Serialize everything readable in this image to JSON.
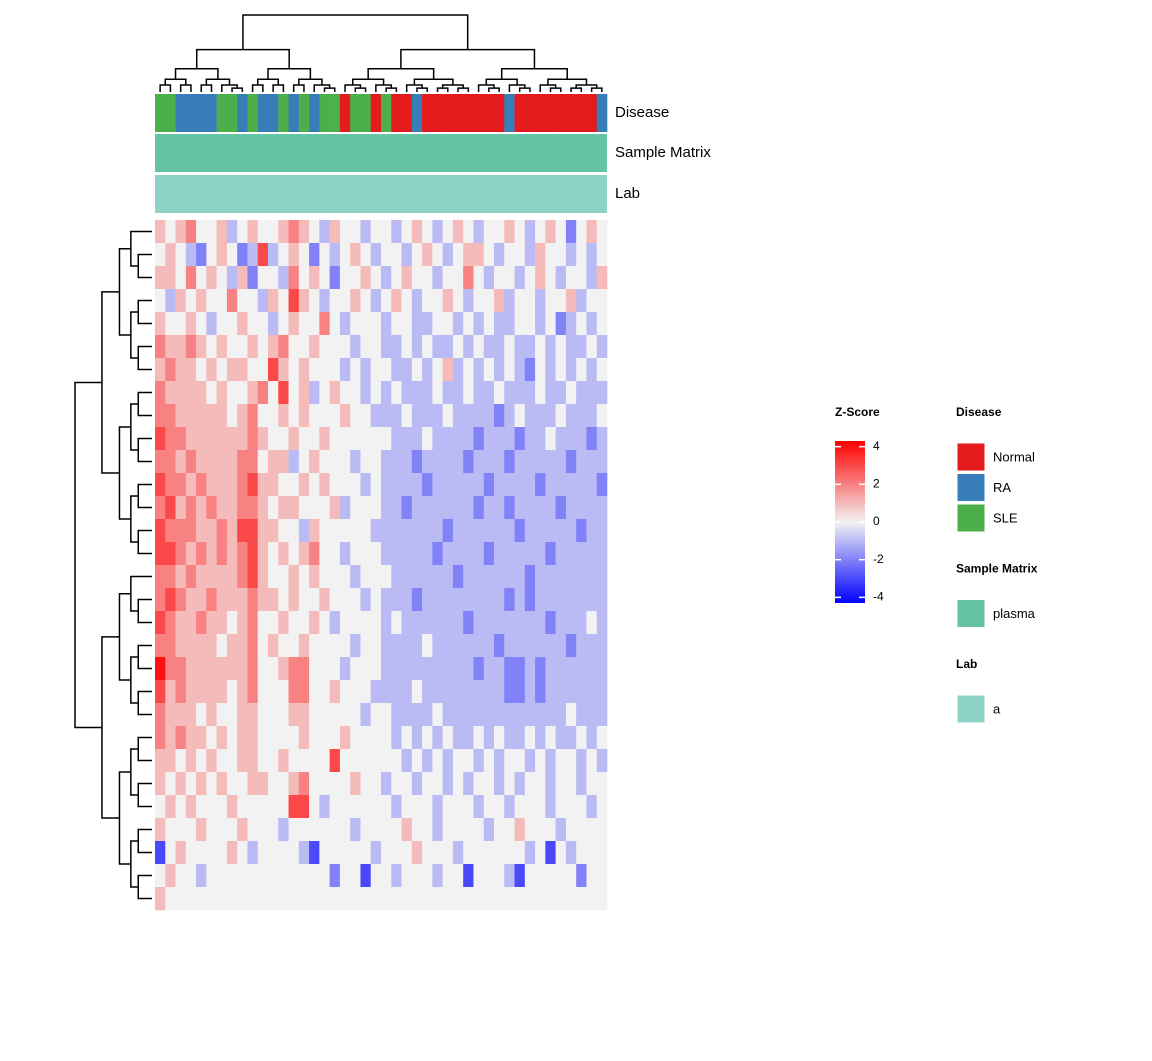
{
  "chart_data": {
    "type": "heatmap",
    "colorbar_title": "Z-Score",
    "zlim": [
      -4.3,
      4.3
    ],
    "zticks": [
      4,
      2,
      0,
      -2,
      -4
    ],
    "low_color": "#0000ff",
    "mid_color": "#f2f2f2",
    "high_color": "#ff0000",
    "annotations": [
      {
        "name": "Disease",
        "title": "Disease",
        "legend": [
          {
            "label": "Normal",
            "color": "#e41a1c"
          },
          {
            "label": "RA",
            "color": "#377eb8"
          },
          {
            "label": "SLE",
            "color": "#4daf4a"
          }
        ],
        "values": [
          "SLE",
          "SLE",
          "RA",
          "RA",
          "RA",
          "RA",
          "SLE",
          "SLE",
          "RA",
          "SLE",
          "RA",
          "RA",
          "SLE",
          "RA",
          "SLE",
          "RA",
          "SLE",
          "SLE",
          "Normal",
          "SLE",
          "SLE",
          "Normal",
          "SLE",
          "Normal",
          "Normal",
          "RA",
          "Normal",
          "Normal",
          "Normal",
          "Normal",
          "Normal",
          "Normal",
          "Normal",
          "Normal",
          "RA",
          "Normal",
          "Normal",
          "Normal",
          "Normal",
          "Normal",
          "Normal",
          "Normal",
          "Normal",
          "RA"
        ]
      },
      {
        "name": "Sample Matrix",
        "title": "Sample Matrix",
        "legend": [
          {
            "label": "plasma",
            "color": "#66c2a5"
          }
        ]
      },
      {
        "name": "Lab",
        "title": "Lab",
        "legend": [
          {
            "label": "a",
            "color": "#8dd3c7"
          }
        ]
      }
    ],
    "matrix": [
      [
        1,
        0,
        1,
        2,
        0,
        0,
        1,
        -1,
        0,
        1,
        0,
        0,
        1,
        2,
        1,
        0,
        -1,
        1,
        0,
        0,
        -1,
        0,
        0,
        -1,
        0,
        1,
        0,
        -1,
        0,
        1,
        0,
        -1,
        0,
        0,
        1,
        0,
        -1,
        0,
        1,
        0,
        -2,
        0,
        1,
        0
      ],
      [
        0,
        1,
        0,
        -1,
        -2,
        0,
        1,
        0,
        -2,
        -1,
        3,
        -1,
        0,
        1,
        0,
        -2,
        0,
        -1,
        0,
        1,
        0,
        -1,
        0,
        0,
        -1,
        0,
        1,
        0,
        -1,
        0,
        1,
        1,
        0,
        -1,
        0,
        0,
        -1,
        1,
        0,
        0,
        -1,
        0,
        -1,
        0
      ],
      [
        1,
        1,
        0,
        2,
        0,
        1,
        0,
        -1,
        1,
        -2,
        0,
        0,
        -1,
        2,
        0,
        1,
        0,
        -2,
        0,
        0,
        1,
        0,
        -1,
        0,
        1,
        0,
        0,
        -1,
        0,
        0,
        2,
        0,
        -1,
        0,
        0,
        -1,
        0,
        1,
        0,
        -1,
        0,
        0,
        -1,
        1
      ],
      [
        0,
        -1,
        1,
        0,
        1,
        0,
        0,
        2,
        0,
        0,
        -1,
        1,
        0,
        3,
        1,
        0,
        -1,
        0,
        0,
        1,
        0,
        -1,
        0,
        1,
        0,
        -1,
        0,
        0,
        1,
        0,
        -1,
        0,
        0,
        1,
        -1,
        0,
        0,
        -1,
        0,
        0,
        1,
        -1,
        0,
        0
      ],
      [
        1,
        0,
        0,
        1,
        0,
        -1,
        0,
        0,
        1,
        0,
        0,
        -1,
        0,
        1,
        0,
        0,
        2,
        0,
        -1,
        0,
        0,
        0,
        -1,
        0,
        0,
        -1,
        -1,
        0,
        0,
        -1,
        0,
        -1,
        0,
        -1,
        -1,
        0,
        0,
        -1,
        0,
        -2,
        -1,
        0,
        -1,
        0
      ],
      [
        2,
        1,
        1,
        2,
        1,
        0,
        1,
        0,
        0,
        1,
        0,
        1,
        2,
        0,
        0,
        1,
        0,
        0,
        0,
        -1,
        0,
        0,
        -1,
        -1,
        0,
        -1,
        0,
        -1,
        -1,
        0,
        -1,
        0,
        -1,
        -1,
        0,
        -1,
        -1,
        0,
        -1,
        0,
        -1,
        -1,
        0,
        -1
      ],
      [
        1,
        2,
        1,
        1,
        0,
        1,
        0,
        1,
        1,
        0,
        0,
        3,
        1,
        0,
        1,
        0,
        0,
        0,
        -1,
        0,
        -1,
        0,
        0,
        -1,
        -1,
        0,
        -1,
        0,
        1,
        -1,
        0,
        -1,
        0,
        -1,
        0,
        -1,
        -2,
        0,
        -1,
        0,
        -1,
        0,
        -1,
        0
      ],
      [
        2,
        1,
        1,
        1,
        1,
        0,
        1,
        0,
        0,
        1,
        2,
        0,
        3,
        0,
        1,
        -1,
        0,
        1,
        0,
        0,
        -1,
        0,
        -1,
        0,
        -1,
        -1,
        -1,
        0,
        -1,
        -1,
        0,
        -1,
        -1,
        0,
        -1,
        -1,
        -1,
        0,
        -1,
        -1,
        0,
        -1,
        -1,
        -1
      ],
      [
        2,
        2,
        1,
        1,
        1,
        1,
        1,
        0,
        1,
        2,
        0,
        0,
        1,
        0,
        1,
        0,
        0,
        0,
        1,
        0,
        0,
        -1,
        -1,
        -1,
        0,
        -1,
        -1,
        -1,
        0,
        -1,
        -1,
        -1,
        -1,
        -2,
        -1,
        0,
        -1,
        -1,
        -1,
        0,
        -1,
        -1,
        -1,
        0
      ],
      [
        3,
        2,
        2,
        1,
        1,
        1,
        1,
        1,
        1,
        2,
        1,
        0,
        0,
        1,
        0,
        0,
        1,
        0,
        0,
        0,
        0,
        0,
        0,
        -1,
        -1,
        -1,
        0,
        -1,
        -1,
        -1,
        -1,
        -2,
        -1,
        -1,
        -1,
        -2,
        -1,
        -1,
        0,
        -1,
        -1,
        -1,
        -2,
        -1
      ],
      [
        2,
        2,
        1,
        2,
        1,
        1,
        1,
        1,
        2,
        2,
        0,
        1,
        1,
        -1,
        0,
        1,
        0,
        0,
        0,
        -1,
        0,
        0,
        -1,
        -1,
        -1,
        -2,
        -1,
        -1,
        -1,
        -1,
        -2,
        -1,
        -1,
        -1,
        -2,
        -1,
        -1,
        -1,
        -1,
        -1,
        -2,
        -1,
        -1,
        -1
      ],
      [
        3,
        2,
        2,
        1,
        2,
        1,
        1,
        1,
        2,
        3,
        1,
        1,
        0,
        0,
        1,
        0,
        1,
        0,
        0,
        0,
        -1,
        0,
        -1,
        -1,
        -1,
        -1,
        -2,
        -1,
        -1,
        -1,
        -1,
        -1,
        -2,
        -1,
        -1,
        -1,
        -1,
        -2,
        -1,
        -1,
        -1,
        -1,
        -1,
        -2
      ],
      [
        2,
        3,
        1,
        2,
        1,
        2,
        1,
        1,
        2,
        2,
        1,
        0,
        1,
        1,
        0,
        0,
        0,
        1,
        -1,
        0,
        0,
        0,
        -1,
        -1,
        -2,
        -1,
        -1,
        -1,
        -1,
        -1,
        -1,
        -2,
        -1,
        -1,
        -2,
        -1,
        -1,
        -1,
        -1,
        -2,
        -1,
        -1,
        -1,
        -1
      ],
      [
        3,
        2,
        2,
        2,
        1,
        1,
        2,
        1,
        3,
        3,
        1,
        1,
        0,
        0,
        -1,
        1,
        0,
        0,
        0,
        0,
        0,
        -1,
        -1,
        -1,
        -1,
        -1,
        -1,
        -1,
        -2,
        -1,
        -1,
        -1,
        -1,
        -1,
        -1,
        -2,
        -1,
        -1,
        -1,
        -1,
        -1,
        -2,
        -1,
        -1
      ],
      [
        3,
        3,
        2,
        1,
        2,
        1,
        2,
        1,
        2,
        3,
        1,
        0,
        1,
        0,
        1,
        2,
        0,
        0,
        -1,
        0,
        0,
        0,
        -1,
        -1,
        -1,
        -1,
        -1,
        -2,
        -1,
        -1,
        -1,
        -1,
        -2,
        -1,
        -1,
        -1,
        -1,
        -1,
        -2,
        -1,
        -1,
        -1,
        -1,
        -1
      ],
      [
        2,
        2,
        1,
        2,
        1,
        1,
        1,
        1,
        2,
        3,
        1,
        0,
        0,
        1,
        0,
        1,
        0,
        0,
        0,
        -1,
        0,
        0,
        0,
        -1,
        -1,
        -1,
        -1,
        -1,
        -1,
        -2,
        -1,
        -1,
        -1,
        -1,
        -1,
        -1,
        -2,
        -1,
        -1,
        -1,
        -1,
        -1,
        -1,
        -1
      ],
      [
        2,
        3,
        2,
        1,
        1,
        2,
        1,
        1,
        1,
        2,
        1,
        1,
        0,
        1,
        0,
        0,
        1,
        0,
        0,
        0,
        -1,
        0,
        -1,
        -1,
        -1,
        -2,
        -1,
        -1,
        -1,
        -1,
        -1,
        -1,
        -1,
        -1,
        -2,
        -1,
        -2,
        -1,
        -1,
        -1,
        -1,
        -1,
        -1,
        -1
      ],
      [
        3,
        2,
        1,
        1,
        2,
        1,
        1,
        0,
        1,
        2,
        0,
        0,
        1,
        0,
        0,
        1,
        0,
        -1,
        0,
        0,
        0,
        0,
        -1,
        0,
        -1,
        -1,
        -1,
        -1,
        -1,
        -1,
        -2,
        -1,
        -1,
        -1,
        -1,
        -1,
        -1,
        -1,
        -2,
        -1,
        -1,
        -1,
        0,
        -1
      ],
      [
        2,
        2,
        1,
        1,
        1,
        1,
        0,
        1,
        1,
        2,
        0,
        1,
        0,
        0,
        1,
        0,
        0,
        0,
        0,
        -1,
        0,
        0,
        -1,
        -1,
        -1,
        -1,
        0,
        -1,
        -1,
        -1,
        -1,
        -1,
        -1,
        -2,
        -1,
        -1,
        -1,
        -1,
        -1,
        -1,
        -2,
        -1,
        -1,
        -1
      ],
      [
        4,
        2,
        2,
        1,
        1,
        1,
        1,
        1,
        1,
        2,
        0,
        0,
        1,
        2,
        2,
        0,
        0,
        0,
        -1,
        0,
        0,
        0,
        -1,
        -1,
        -1,
        -1,
        -1,
        -1,
        -1,
        -1,
        -1,
        -2,
        -1,
        -1,
        -2,
        -2,
        -1,
        -2,
        -1,
        -1,
        -1,
        -1,
        -1,
        -1
      ],
      [
        3,
        1,
        2,
        1,
        1,
        1,
        1,
        0,
        1,
        2,
        0,
        0,
        0,
        2,
        2,
        0,
        0,
        1,
        0,
        0,
        0,
        -1,
        -1,
        -1,
        -1,
        0,
        -1,
        -1,
        -1,
        -1,
        -1,
        -1,
        -1,
        -1,
        -2,
        -2,
        -1,
        -2,
        -1,
        -1,
        -1,
        -1,
        -1,
        -1
      ],
      [
        2,
        1,
        1,
        1,
        0,
        1,
        0,
        0,
        1,
        1,
        0,
        0,
        0,
        1,
        1,
        0,
        0,
        0,
        0,
        0,
        -1,
        0,
        0,
        -1,
        -1,
        -1,
        -1,
        0,
        -1,
        -1,
        -1,
        -1,
        -1,
        -1,
        -1,
        -1,
        -1,
        -1,
        -1,
        -1,
        0,
        -1,
        -1,
        -1
      ],
      [
        2,
        1,
        2,
        1,
        1,
        0,
        1,
        0,
        1,
        1,
        0,
        0,
        0,
        0,
        1,
        0,
        0,
        0,
        1,
        0,
        0,
        0,
        0,
        -1,
        0,
        -1,
        0,
        -1,
        0,
        -1,
        -1,
        0,
        -1,
        0,
        -1,
        -1,
        0,
        -1,
        0,
        -1,
        -1,
        0,
        -1,
        0
      ],
      [
        1,
        1,
        0,
        1,
        0,
        1,
        0,
        0,
        1,
        1,
        0,
        0,
        1,
        0,
        0,
        0,
        0,
        3,
        0,
        0,
        0,
        0,
        0,
        0,
        -1,
        0,
        -1,
        0,
        -1,
        0,
        0,
        -1,
        0,
        -1,
        0,
        0,
        -1,
        0,
        -1,
        0,
        0,
        -1,
        0,
        -1
      ],
      [
        1,
        0,
        1,
        0,
        1,
        0,
        1,
        0,
        0,
        1,
        1,
        0,
        0,
        1,
        2,
        0,
        0,
        0,
        0,
        1,
        0,
        0,
        -1,
        0,
        0,
        -1,
        0,
        0,
        -1,
        0,
        -1,
        0,
        0,
        -1,
        0,
        -1,
        0,
        0,
        -1,
        0,
        0,
        -1,
        0,
        0
      ],
      [
        0,
        1,
        0,
        1,
        0,
        0,
        0,
        1,
        0,
        0,
        0,
        0,
        0,
        3,
        3,
        0,
        -1,
        0,
        0,
        0,
        0,
        0,
        0,
        -1,
        0,
        0,
        0,
        -1,
        0,
        0,
        0,
        -1,
        0,
        0,
        -1,
        0,
        0,
        0,
        -1,
        0,
        0,
        0,
        -1,
        0
      ],
      [
        1,
        0,
        0,
        0,
        1,
        0,
        0,
        0,
        1,
        0,
        0,
        0,
        -1,
        0,
        0,
        0,
        0,
        0,
        0,
        -1,
        0,
        0,
        0,
        0,
        1,
        0,
        0,
        -1,
        0,
        0,
        0,
        0,
        -1,
        0,
        0,
        1,
        0,
        0,
        0,
        -1,
        0,
        0,
        0,
        0
      ],
      [
        -3,
        0,
        1,
        0,
        0,
        0,
        0,
        1,
        0,
        -1,
        0,
        0,
        0,
        0,
        -1,
        -3,
        0,
        0,
        0,
        0,
        0,
        -1,
        0,
        0,
        0,
        1,
        0,
        0,
        0,
        -1,
        0,
        0,
        0,
        0,
        0,
        0,
        -1,
        0,
        -3,
        0,
        -1,
        0,
        0,
        0
      ],
      [
        0,
        1,
        0,
        0,
        -1,
        0,
        0,
        0,
        0,
        0,
        0,
        0,
        0,
        0,
        0,
        0,
        0,
        -2,
        0,
        0,
        -3,
        0,
        0,
        -1,
        0,
        0,
        0,
        -1,
        0,
        0,
        -3,
        0,
        0,
        0,
        -1,
        -3,
        0,
        0,
        0,
        0,
        0,
        -2,
        0,
        0
      ],
      [
        1,
        0,
        0,
        0,
        0,
        0,
        0,
        0,
        0,
        0,
        0,
        0,
        0,
        0,
        0,
        0,
        0,
        0,
        0,
        0,
        0,
        0,
        0,
        0,
        0,
        0,
        0,
        0,
        0,
        0,
        0,
        0,
        0,
        0,
        0,
        0,
        0,
        0,
        0,
        0,
        0,
        0,
        0,
        0
      ]
    ]
  }
}
